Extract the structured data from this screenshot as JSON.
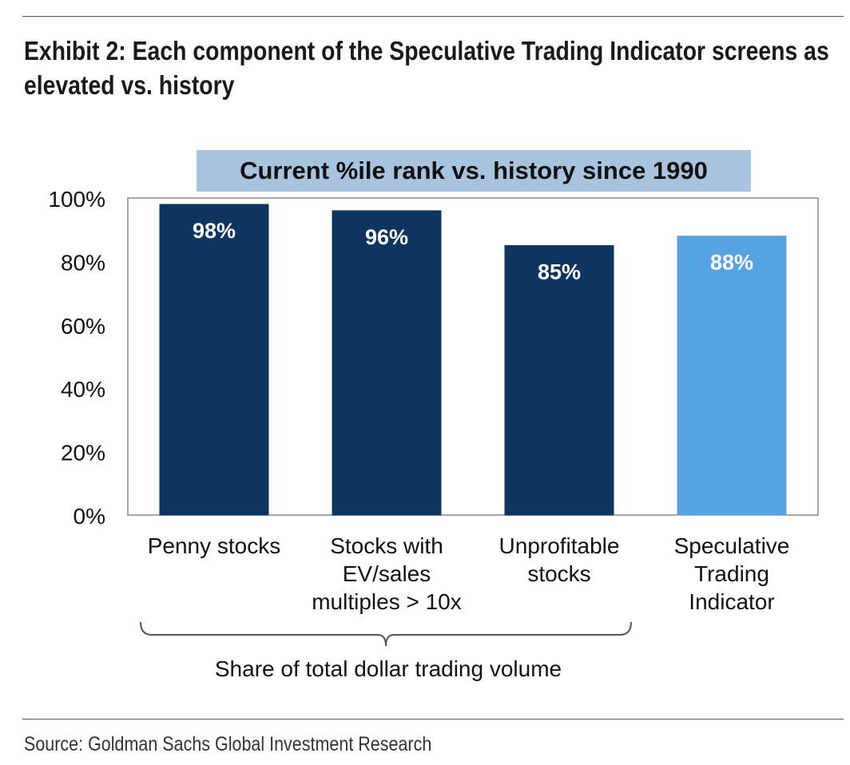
{
  "exhibit_title": "Exhibit 2: Each component of the Speculative Trading Indicator screens as elevated vs. history",
  "source": "Source: Goldman Sachs Global Investment Research",
  "group_label": "Share of total dollar trading volume",
  "colors": {
    "component_bar": "#0d3560",
    "indicator_bar": "#56a3e3",
    "title_highlight": "#a7c3dd"
  },
  "chart_data": {
    "type": "bar",
    "title": "Current %ile rank vs. history since 1990",
    "categories": [
      "Penny stocks",
      "Stocks with\nEV/sales\nmultiples > 10x",
      "Unprofitable\nstocks",
      "Speculative\nTrading\nIndicator"
    ],
    "values": [
      98,
      96,
      85,
      88
    ],
    "data_labels": [
      "98%",
      "96%",
      "85%",
      "88%"
    ],
    "ylim": [
      0,
      100
    ],
    "yticks": [
      "0%",
      "20%",
      "40%",
      "60%",
      "80%",
      "100%"
    ],
    "ytick_values": [
      0,
      20,
      40,
      60,
      80,
      100
    ],
    "grid": false,
    "highlighted_category": "Speculative\nTrading\nIndicator",
    "bracket_groups": [
      "Penny stocks",
      "Stocks with\nEV/sales\nmultiples > 10x",
      "Unprofitable\nstocks"
    ]
  }
}
